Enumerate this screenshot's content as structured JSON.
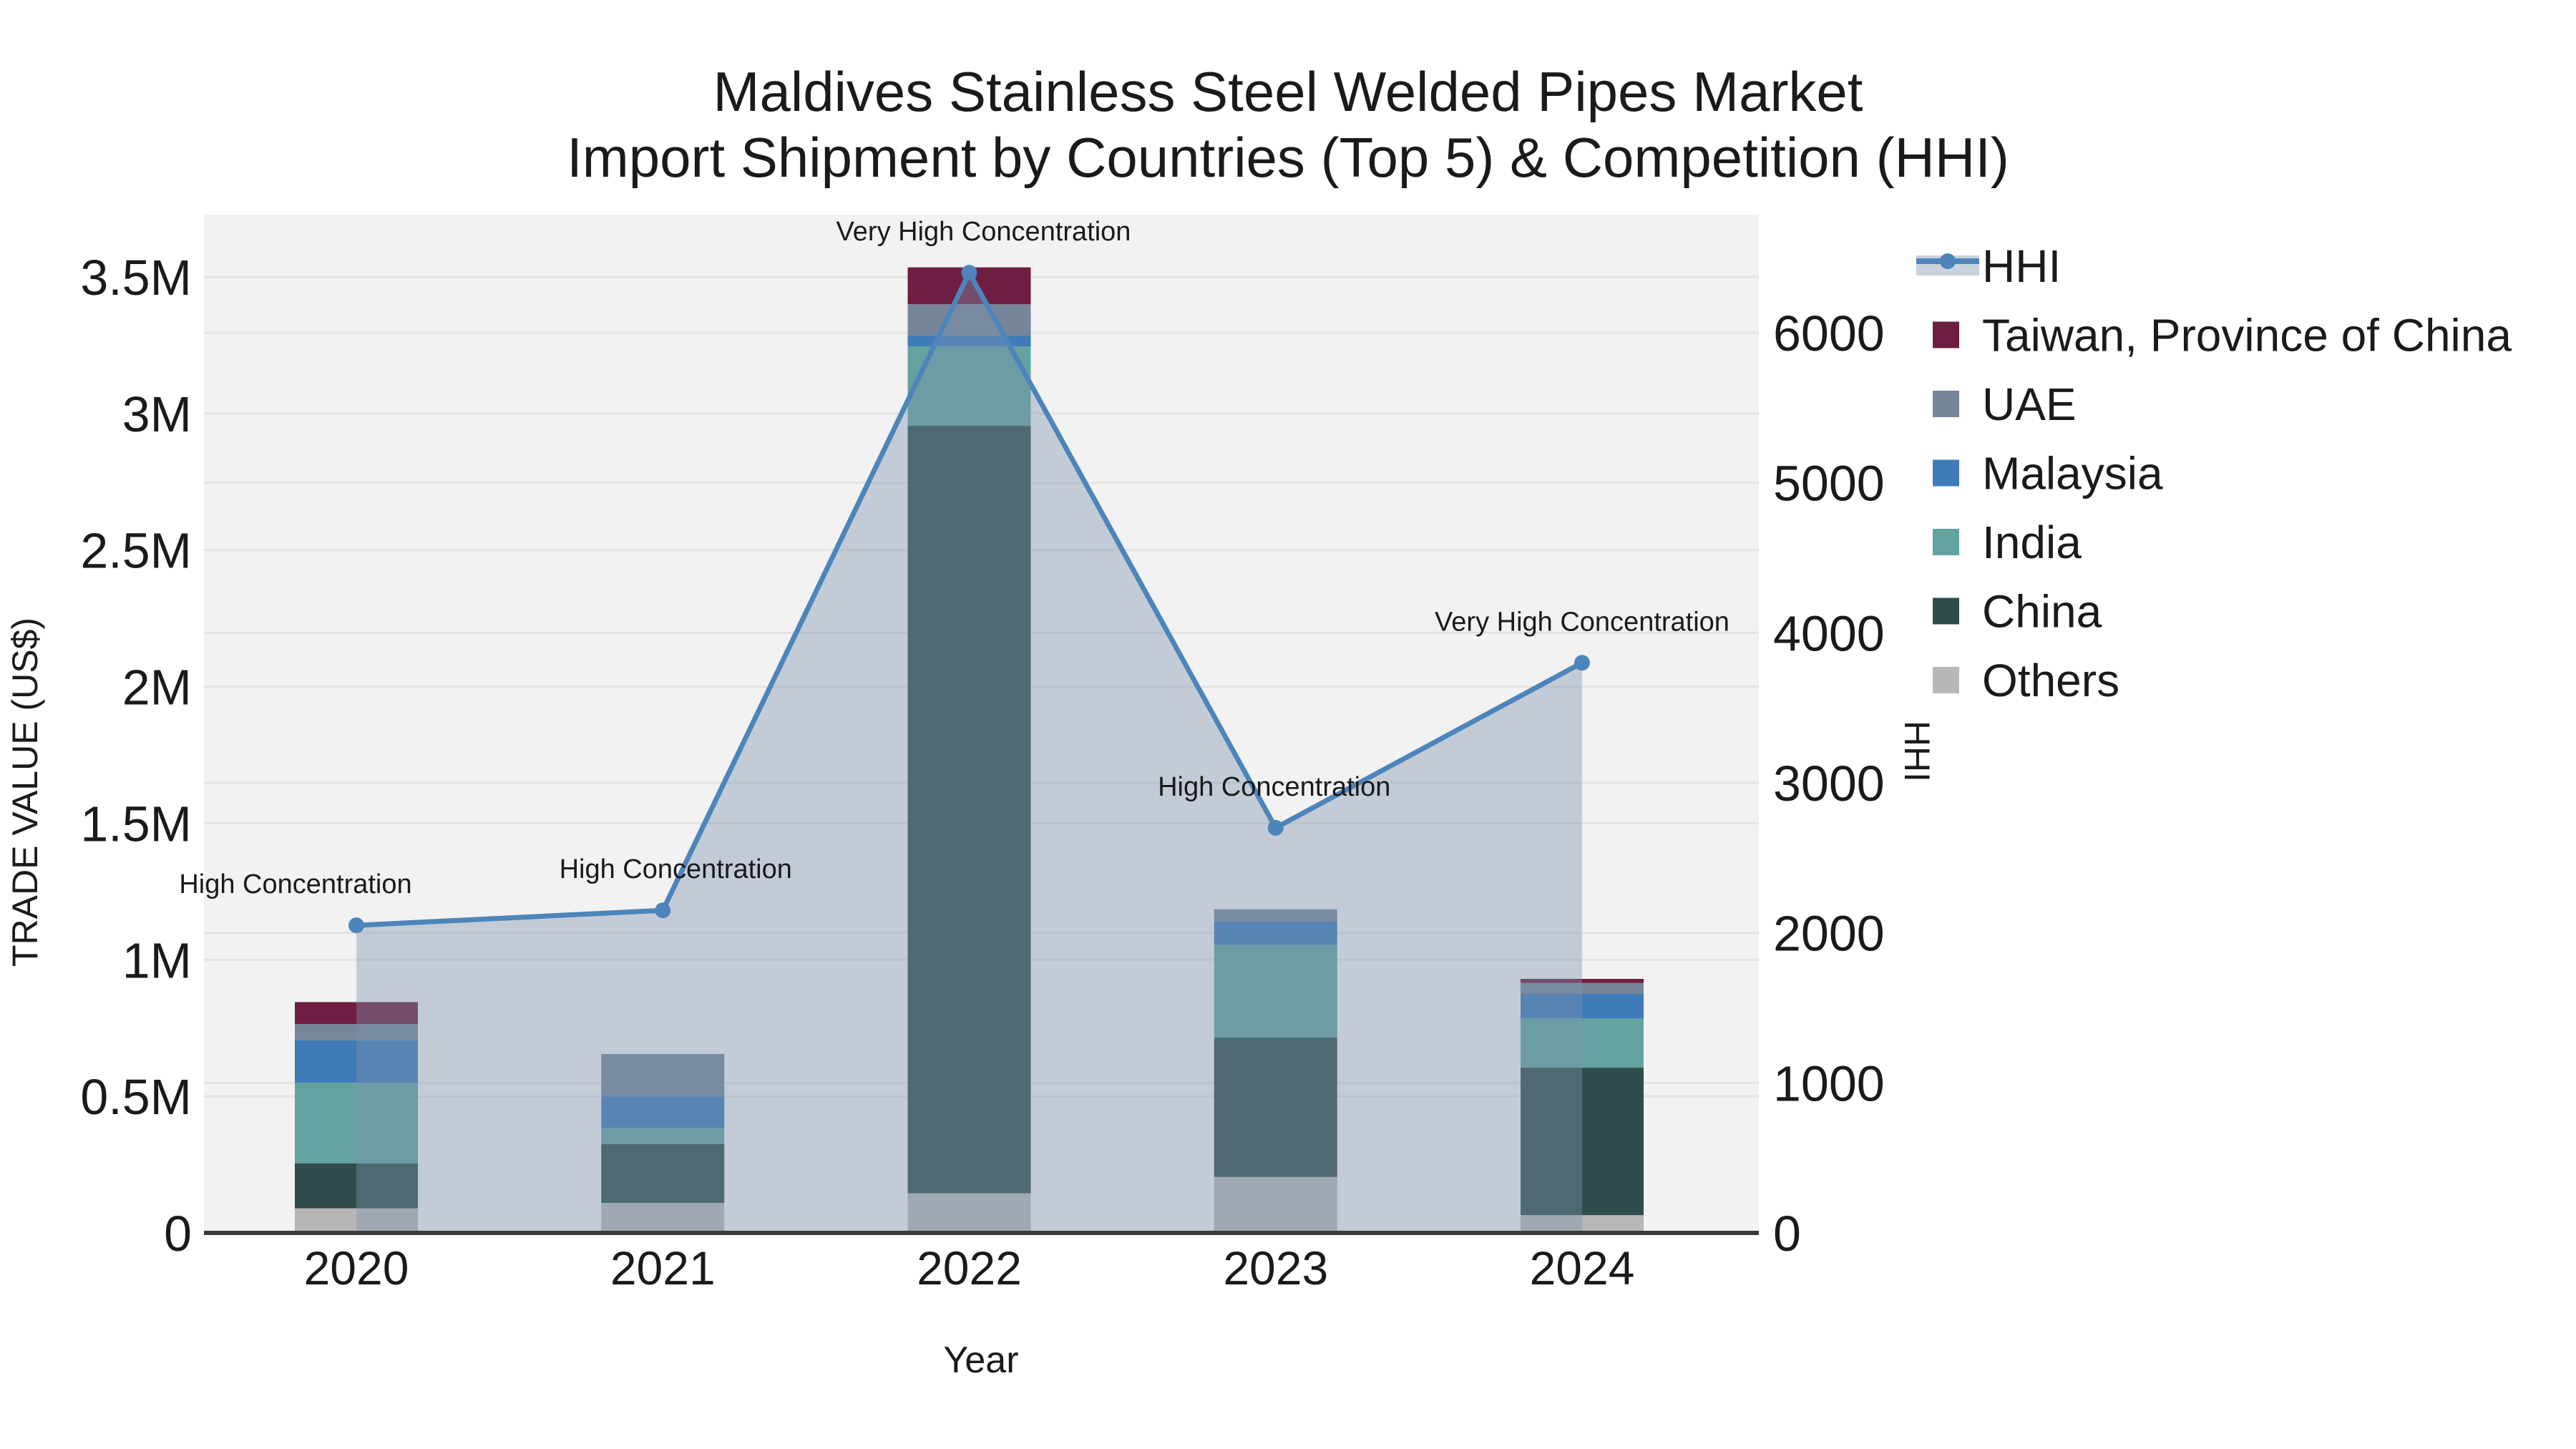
{
  "title": {
    "line1": "Maldives Stainless Steel Welded Pipes Market",
    "line2": "Import Shipment by Countries (Top 5) & Competition (HHI)"
  },
  "axes": {
    "left_title": "TRADE VALUE (US$)",
    "right_title": "HHI",
    "x_title": "Year"
  },
  "colors": {
    "hhi_line": "#4d85ba",
    "hhi_area_fill": "#7c93ac",
    "hhi_legend_band": "#c9d2dd",
    "taiwan": "#6e1e40",
    "uae": "#76859a",
    "malaysia": "#3e7bb8",
    "india": "#64a2a0",
    "china": "#2f4d4c",
    "others": "#b7b7b7",
    "plot_bg": "#f2f2f2",
    "grid": "#e3e3e3",
    "axis_line": "#3a3a3a",
    "text": "#1a1a1a"
  },
  "legend": {
    "items": [
      {
        "label": "HHI",
        "type": "line",
        "color": "#4d85ba"
      },
      {
        "label": "Taiwan, Province of China",
        "type": "swatch",
        "color": "#6e1e40"
      },
      {
        "label": "UAE",
        "type": "swatch",
        "color": "#76859a"
      },
      {
        "label": "Malaysia",
        "type": "swatch",
        "color": "#3e7bb8"
      },
      {
        "label": "India",
        "type": "swatch",
        "color": "#64a2a0"
      },
      {
        "label": "China",
        "type": "swatch",
        "color": "#2f4d4c"
      },
      {
        "label": "Others",
        "type": "swatch",
        "color": "#b7b7b7"
      }
    ]
  },
  "chart_data": {
    "type": "combo",
    "subtypes": [
      "stacked-bar",
      "line-area"
    ],
    "title": "Maldives Stainless Steel Welded Pipes Market Import Shipment by Countries (Top 5) & Competition (HHI)",
    "categories": [
      "2020",
      "2021",
      "2022",
      "2023",
      "2024"
    ],
    "bar_value_unit": "US$",
    "series": [
      {
        "name": "Others",
        "color": "#b7b7b7",
        "values": [
          90000,
          110000,
          145000,
          205000,
          65000
        ]
      },
      {
        "name": "China",
        "color": "#2f4d4c",
        "values": [
          165000,
          215000,
          2810000,
          510000,
          540000
        ]
      },
      {
        "name": "India",
        "color": "#64a2a0",
        "values": [
          295000,
          60000,
          290000,
          340000,
          180000
        ]
      },
      {
        "name": "Malaysia",
        "color": "#3e7bb8",
        "values": [
          155000,
          115000,
          40000,
          85000,
          90000
        ]
      },
      {
        "name": "UAE",
        "color": "#76859a",
        "values": [
          60000,
          155000,
          115000,
          45000,
          40000
        ]
      },
      {
        "name": "Taiwan, Province of China",
        "color": "#6e1e40",
        "values": [
          80000,
          0,
          135000,
          0,
          15000
        ]
      }
    ],
    "bar_totals": [
      845000,
      655000,
      3535000,
      1185000,
      930000
    ],
    "line_series": {
      "name": "HHI",
      "axis": "right",
      "color": "#4d85ba",
      "values": [
        2050,
        2150,
        6400,
        2700,
        3800
      ],
      "area_fill": true
    },
    "annotations": [
      {
        "x": "2020",
        "text": "High Concentration"
      },
      {
        "x": "2021",
        "text": "High Concentration"
      },
      {
        "x": "2022",
        "text": "Very High Concentration"
      },
      {
        "x": "2023",
        "text": "High Concentration"
      },
      {
        "x": "2024",
        "text": "Very High Concentration"
      }
    ],
    "left_axis": {
      "label": "TRADE VALUE (US$)",
      "tick_labels": [
        "0",
        "0.5M",
        "1M",
        "1.5M",
        "2M",
        "2.5M",
        "3M",
        "3.5M"
      ],
      "tick_values": [
        0,
        500000,
        1000000,
        1500000,
        2000000,
        2500000,
        3000000,
        3500000
      ],
      "range": [
        0,
        3730000
      ]
    },
    "right_axis": {
      "label": "HHI",
      "tick_labels": [
        "0",
        "1000",
        "2000",
        "3000",
        "4000",
        "5000",
        "6000"
      ],
      "tick_values": [
        0,
        1000,
        2000,
        3000,
        4000,
        5000,
        6000
      ],
      "range": [
        0,
        6800
      ]
    },
    "x_axis": {
      "label": "Year"
    },
    "grid": true,
    "legend_position": "right"
  }
}
